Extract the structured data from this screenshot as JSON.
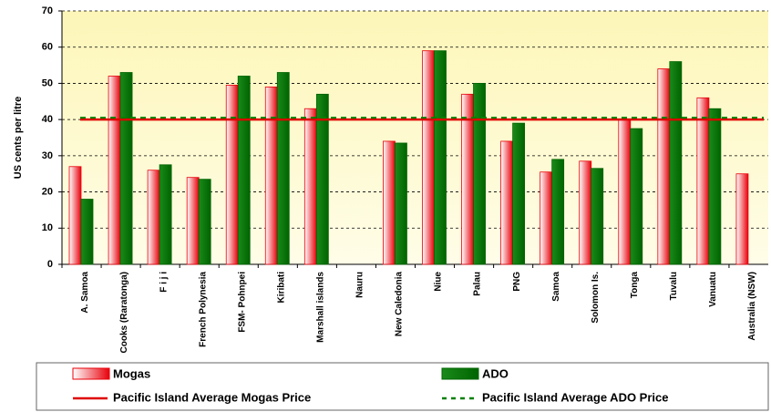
{
  "chart_data": {
    "type": "bar",
    "ylabel": "US cents per litre",
    "categories": [
      "A. Samoa",
      "Cooks (Raratonga)",
      "F i j i",
      "French Polynesia",
      "FSM- Pohnpei",
      "Kiribati",
      "Marshall islands",
      "Nauru",
      "New Caledonia",
      "Niue",
      "Palau",
      "PNG",
      "Samoa",
      "Solomon Is.",
      "Tonga",
      "Tuvalu",
      "Vanuatu",
      "Australia (NSW)"
    ],
    "series": [
      {
        "name": "Mogas",
        "color": "#e8000a",
        "values": [
          27,
          52,
          26,
          24,
          49.5,
          49,
          43,
          null,
          34,
          59,
          47,
          34,
          25.5,
          28.5,
          40,
          54,
          46,
          25
        ]
      },
      {
        "name": "ADO",
        "color": "#006400",
        "values": [
          18,
          53,
          27.5,
          23.5,
          52,
          53,
          47,
          null,
          33.5,
          59,
          50,
          39,
          29,
          26.5,
          37.5,
          56,
          43,
          null
        ]
      }
    ],
    "reference_lines": [
      {
        "name": "Pacific Island Average Mogas Price",
        "value": 40,
        "color": "#e00000",
        "style": "solid"
      },
      {
        "name": "Pacific Island Average ADO Price",
        "value": 40.5,
        "color": "#008000",
        "style": "dashed"
      }
    ],
    "ylim": [
      0,
      70
    ],
    "yticks": [
      0,
      10,
      20,
      30,
      40,
      50,
      60,
      70
    ],
    "grid": true
  }
}
